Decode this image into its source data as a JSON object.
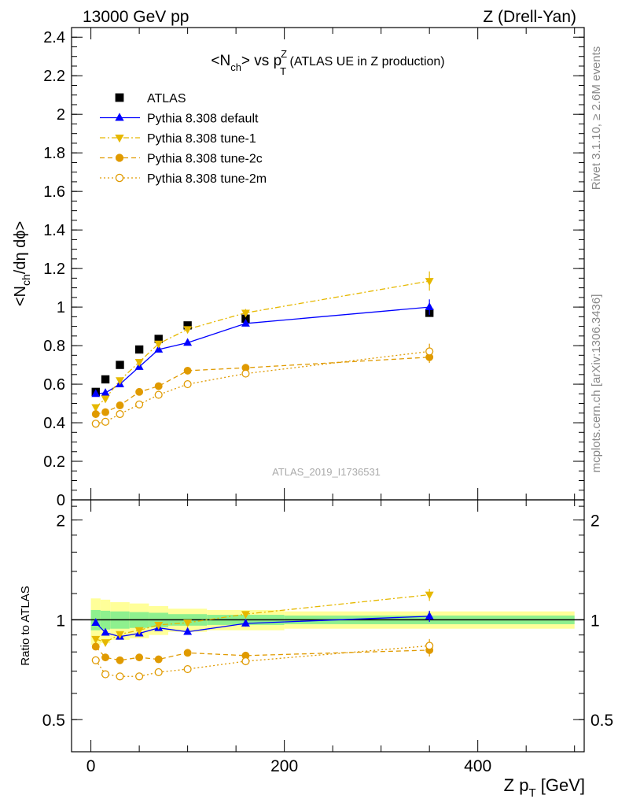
{
  "header": {
    "left": "13000 GeV pp",
    "right": "Z (Drell-Yan)"
  },
  "side_labels": {
    "rivet": "Rivet 3.1.10, ≥ 2.6M events",
    "mcplots": "mcplots.cern.ch [arXiv:1306.3436]"
  },
  "chart_data": [
    {
      "type": "scatter",
      "panel": "main",
      "title": {
        "a": "<N",
        "a_sub": "ch",
        "b": "> vs p",
        "b_sup": "Z",
        "b_sub": "T",
        "c": " (ATLAS UE in Z production)"
      },
      "ylabel": {
        "a": "<N",
        "sub": "ch",
        "b": "/dη dϕ>"
      },
      "watermark": "ATLAS_2019_I1736531",
      "xlim": [
        -20,
        510
      ],
      "ylim": [
        0,
        2.45
      ],
      "yticks": [
        0,
        0.2,
        0.4,
        0.6,
        0.8,
        1,
        1.2,
        1.4,
        1.6,
        1.8,
        2,
        2.2,
        2.4
      ],
      "ytick_labels": [
        "0",
        "0.2",
        "0.4",
        "0.6",
        "0.8",
        "1",
        "1.2",
        "1.4",
        "1.6",
        "1.8",
        "2",
        "2.2",
        "2.4"
      ],
      "legend_position": "top-left",
      "x": [
        5,
        15,
        30,
        50,
        70,
        100,
        160,
        350
      ],
      "series": [
        {
          "name": "ATLAS",
          "color": "#000000",
          "marker": "square",
          "line": "none",
          "values": [
            0.56,
            0.625,
            0.7,
            0.78,
            0.835,
            0.905,
            0.94,
            0.97
          ],
          "err": [
            0.01,
            0.01,
            0.01,
            0.01,
            0.01,
            0.01,
            0.015,
            0.02
          ]
        },
        {
          "name": "Pythia 8.308 default",
          "color": "#0000ff",
          "marker": "triangle-up",
          "line": "solid",
          "values": [
            0.55,
            0.555,
            0.6,
            0.69,
            0.78,
            0.815,
            0.915,
            1.0
          ],
          "err": [
            0.01,
            0.01,
            0.01,
            0.01,
            0.01,
            0.01,
            0.015,
            0.04
          ]
        },
        {
          "name": "Pythia 8.308 tune-1",
          "color": "#e6b800",
          "marker": "triangle-down",
          "line": "dashdot",
          "values": [
            0.48,
            0.525,
            0.62,
            0.715,
            0.81,
            0.885,
            0.97,
            1.135
          ],
          "err": [
            0.01,
            0.01,
            0.01,
            0.01,
            0.01,
            0.01,
            0.02,
            0.05
          ]
        },
        {
          "name": "Pythia 8.308 tune-2c",
          "color": "#e09a00",
          "marker": "circle",
          "line": "dashed",
          "values": [
            0.445,
            0.455,
            0.49,
            0.56,
            0.59,
            0.67,
            0.685,
            0.74
          ],
          "err": [
            0.01,
            0.01,
            0.01,
            0.01,
            0.01,
            0.01,
            0.01,
            0.03
          ]
        },
        {
          "name": "Pythia 8.308 tune-2m",
          "color": "#e09a00",
          "marker": "circle-open",
          "line": "dotted",
          "values": [
            0.395,
            0.405,
            0.445,
            0.495,
            0.545,
            0.6,
            0.655,
            0.77
          ],
          "err": [
            0.01,
            0.01,
            0.01,
            0.01,
            0.01,
            0.01,
            0.01,
            0.04
          ]
        }
      ]
    },
    {
      "type": "scatter",
      "panel": "ratio",
      "ylabel": "Ratio to ATLAS",
      "xlabel": {
        "a": "Z p",
        "sub": "T",
        "b": " [GeV]"
      },
      "xlim": [
        -20,
        510
      ],
      "xticks": [
        0,
        200,
        400
      ],
      "xtick_labels": [
        "0",
        "200",
        "400"
      ],
      "ylim": [
        0.4,
        2.3
      ],
      "yscale": "log",
      "yticks": [
        0.5,
        1,
        2
      ],
      "ytick_labels": [
        "0.5",
        "1",
        "2"
      ],
      "bands": {
        "edges": [
          0,
          10,
          20,
          40,
          60,
          80,
          120,
          200,
          500
        ],
        "green": [
          0.07,
          0.065,
          0.06,
          0.055,
          0.05,
          0.04,
          0.035,
          0.03
        ],
        "yellow": [
          0.16,
          0.15,
          0.13,
          0.12,
          0.1,
          0.08,
          0.07,
          0.06
        ],
        "green_color": "#8ef08e",
        "yellow_color": "#ffff99"
      },
      "x": [
        5,
        15,
        30,
        50,
        70,
        100,
        160,
        350
      ],
      "series": [
        {
          "name": "Pythia 8.308 default",
          "color": "#0000ff",
          "marker": "triangle-up",
          "line": "solid",
          "values": [
            0.98,
            0.915,
            0.89,
            0.91,
            0.945,
            0.92,
            0.975,
            1.025
          ],
          "err": [
            0.015,
            0.015,
            0.015,
            0.015,
            0.015,
            0.015,
            0.02,
            0.04
          ]
        },
        {
          "name": "Pythia 8.308 tune-1",
          "color": "#e6b800",
          "marker": "triangle-down",
          "line": "dashdot",
          "values": [
            0.875,
            0.855,
            0.905,
            0.93,
            0.965,
            0.98,
            1.04,
            1.19
          ],
          "err": [
            0.015,
            0.015,
            0.015,
            0.015,
            0.015,
            0.015,
            0.02,
            0.05
          ]
        },
        {
          "name": "Pythia 8.308 tune-2c",
          "color": "#e09a00",
          "marker": "circle",
          "line": "dashed",
          "values": [
            0.83,
            0.77,
            0.755,
            0.77,
            0.76,
            0.795,
            0.78,
            0.81
          ],
          "err": [
            0.015,
            0.015,
            0.015,
            0.015,
            0.015,
            0.015,
            0.02,
            0.035
          ]
        },
        {
          "name": "Pythia 8.308 tune-2m",
          "color": "#e09a00",
          "marker": "circle-open",
          "line": "dotted",
          "values": [
            0.755,
            0.685,
            0.675,
            0.675,
            0.695,
            0.71,
            0.75,
            0.835
          ],
          "err": [
            0.015,
            0.015,
            0.015,
            0.015,
            0.015,
            0.015,
            0.02,
            0.04
          ]
        }
      ]
    }
  ]
}
